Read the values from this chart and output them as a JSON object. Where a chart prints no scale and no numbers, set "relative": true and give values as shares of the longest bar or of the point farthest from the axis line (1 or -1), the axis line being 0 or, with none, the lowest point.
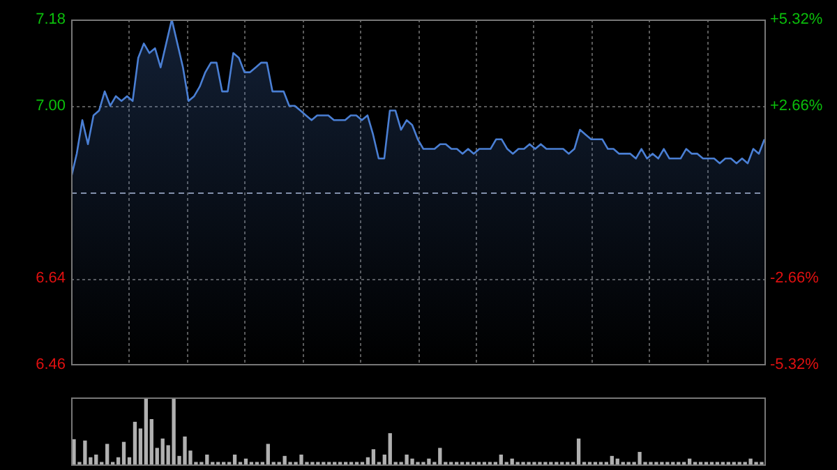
{
  "chart_data": [
    {
      "type": "area",
      "categories": [
        null,
        null,
        null,
        null,
        null,
        null,
        null,
        null,
        null,
        null,
        null,
        null,
        null,
        null,
        null,
        null,
        null,
        null,
        null,
        null,
        null,
        null,
        null,
        null,
        null,
        null,
        null,
        null,
        null,
        null,
        null,
        null,
        null,
        null,
        null,
        null,
        null,
        null,
        null,
        null,
        null,
        null,
        null,
        null,
        null,
        null,
        null,
        null,
        null,
        null,
        null,
        null,
        null,
        null,
        null,
        null,
        null,
        null,
        null,
        null,
        null,
        null,
        null,
        null,
        null,
        null,
        null,
        null,
        null,
        null,
        null,
        null,
        null,
        null,
        null,
        null,
        null,
        null,
        null,
        null,
        null,
        null,
        null,
        null,
        null,
        null,
        null,
        null,
        null,
        null,
        null,
        null,
        null,
        null,
        null,
        null,
        null,
        null,
        null,
        null,
        null,
        null,
        null,
        null,
        null,
        null,
        null,
        null,
        null,
        null,
        null,
        null,
        null,
        null,
        null,
        null,
        null,
        null,
        null,
        null,
        null,
        null,
        null,
        null,
        null
      ],
      "series": [
        {
          "color": "#4a7fd4",
          "values": [
            6.85,
            6.9,
            6.97,
            6.92,
            6.98,
            6.99,
            7.03,
            7.0,
            7.02,
            7.01,
            7.02,
            7.01,
            7.1,
            7.13,
            7.11,
            7.12,
            7.08,
            7.13,
            7.18,
            7.13,
            7.08,
            7.01,
            7.02,
            7.04,
            7.07,
            7.09,
            7.09,
            7.03,
            7.03,
            7.11,
            7.1,
            7.07,
            7.07,
            7.08,
            7.09,
            7.09,
            7.03,
            7.03,
            7.03,
            7.0,
            7.0,
            6.99,
            6.98,
            6.97,
            6.98,
            6.98,
            6.98,
            6.97,
            6.97,
            6.97,
            6.98,
            6.98,
            6.97,
            6.98,
            6.94,
            6.89,
            6.89,
            6.99,
            6.99,
            6.95,
            6.97,
            6.96,
            6.93,
            6.91,
            6.91,
            6.91,
            6.92,
            6.92,
            6.91,
            6.91,
            6.9,
            6.91,
            6.9,
            6.91,
            6.91,
            6.91,
            6.93,
            6.93,
            6.91,
            6.9,
            6.91,
            6.91,
            6.92,
            6.91,
            6.92,
            6.91,
            6.91,
            6.91,
            6.91,
            6.9,
            6.91,
            6.95,
            6.94,
            6.93,
            6.93,
            6.93,
            6.91,
            6.91,
            6.9,
            6.9,
            6.9,
            6.89,
            6.91,
            6.89,
            6.9,
            6.89,
            6.91,
            6.89,
            6.89,
            6.89,
            6.91,
            6.9,
            6.9,
            6.89,
            6.89,
            6.89,
            6.88,
            6.89,
            6.89,
            6.88,
            6.89,
            6.88,
            6.91,
            6.9,
            6.93
          ]
        }
      ],
      "ylim": [
        6.46,
        7.18
      ],
      "yticks": [
        7.18,
        {
          "value": 7,
          "label": "7.00"
        },
        6.64,
        6.46
      ],
      "y2lim": [
        -5.32,
        5.32
      ],
      "y2ticks": [
        {
          "value": 5.32,
          "label": "+5.32%"
        },
        {
          "value": 2.66,
          "label": "+2.66%"
        },
        {
          "value": -2.66,
          "label": "-2.66%"
        },
        {
          "value": -5.32,
          "label": "-5.32%"
        }
      ],
      "ref_lines": [
        {
          "axis": "y",
          "value": 6.82,
          "line_style": "dashed"
        }
      ],
      "grid": true,
      "legend": false,
      "marker": "none",
      "line_style": "solid"
    },
    {
      "type": "bar",
      "relative": true,
      "color": "#b0b0b0",
      "legend": false,
      "grid": false,
      "tick_labels": false,
      "categories": [
        null,
        null,
        null,
        null,
        null,
        null,
        null,
        null,
        null,
        null,
        null,
        null,
        null,
        null,
        null,
        null,
        null,
        null,
        null,
        null,
        null,
        null,
        null,
        null,
        null,
        null,
        null,
        null,
        null,
        null,
        null,
        null,
        null,
        null,
        null,
        null,
        null,
        null,
        null,
        null,
        null,
        null,
        null,
        null,
        null,
        null,
        null,
        null,
        null,
        null,
        null,
        null,
        null,
        null,
        null,
        null,
        null,
        null,
        null,
        null,
        null,
        null,
        null,
        null,
        null,
        null,
        null,
        null,
        null,
        null,
        null,
        null,
        null,
        null,
        null,
        null,
        null,
        null,
        null,
        null,
        null,
        null,
        null,
        null,
        null,
        null,
        null,
        null,
        null,
        null,
        null,
        null,
        null,
        null,
        null,
        null,
        null,
        null,
        null,
        null,
        null,
        null,
        null,
        null,
        null,
        null,
        null,
        null,
        null,
        null,
        null,
        null,
        null,
        null,
        null,
        null,
        null,
        null,
        null,
        null,
        null,
        null,
        null,
        null,
        null
      ],
      "values": [
        0.37,
        0.03,
        0.35,
        0.1,
        0.14,
        0.03,
        0.3,
        0.03,
        0.1,
        0.33,
        0.1,
        0.63,
        0.53,
        1,
        0.67,
        0.24,
        0.38,
        0.28,
        1,
        0.12,
        0.41,
        0.2,
        0.03,
        0.03,
        0.14,
        0.03,
        0.03,
        0.03,
        0.03,
        0.14,
        0.03,
        0.08,
        0.03,
        0.03,
        0.03,
        0.3,
        0.03,
        0.03,
        0.12,
        0.03,
        0.03,
        0.14,
        0.03,
        0.03,
        0.03,
        0.03,
        0.03,
        0.03,
        0.03,
        0.03,
        0.03,
        0.03,
        0.03,
        0.1,
        0.22,
        0.03,
        0.14,
        0.46,
        0.03,
        0.03,
        0.14,
        0.08,
        0.03,
        0.03,
        0.08,
        0.03,
        0.24,
        0.03,
        0.03,
        0.03,
        0.03,
        0.03,
        0.03,
        0.03,
        0.03,
        0.03,
        0.03,
        0.14,
        0.03,
        0.08,
        0.03,
        0.03,
        0.03,
        0.03,
        0.03,
        0.03,
        0.03,
        0.03,
        0.03,
        0.03,
        0.03,
        0.38,
        0.03,
        0.03,
        0.03,
        0.03,
        0.03,
        0.12,
        0.08,
        0.03,
        0.03,
        0.03,
        0.18,
        0.03,
        0.03,
        0.03,
        0.03,
        0.03,
        0.03,
        0.03,
        0.03,
        0.08,
        0.03,
        0.03,
        0.03,
        0.03,
        0.03,
        0.03,
        0.03,
        0.03,
        0.03,
        0.03,
        0.08,
        0.03,
        0.03
      ]
    }
  ]
}
